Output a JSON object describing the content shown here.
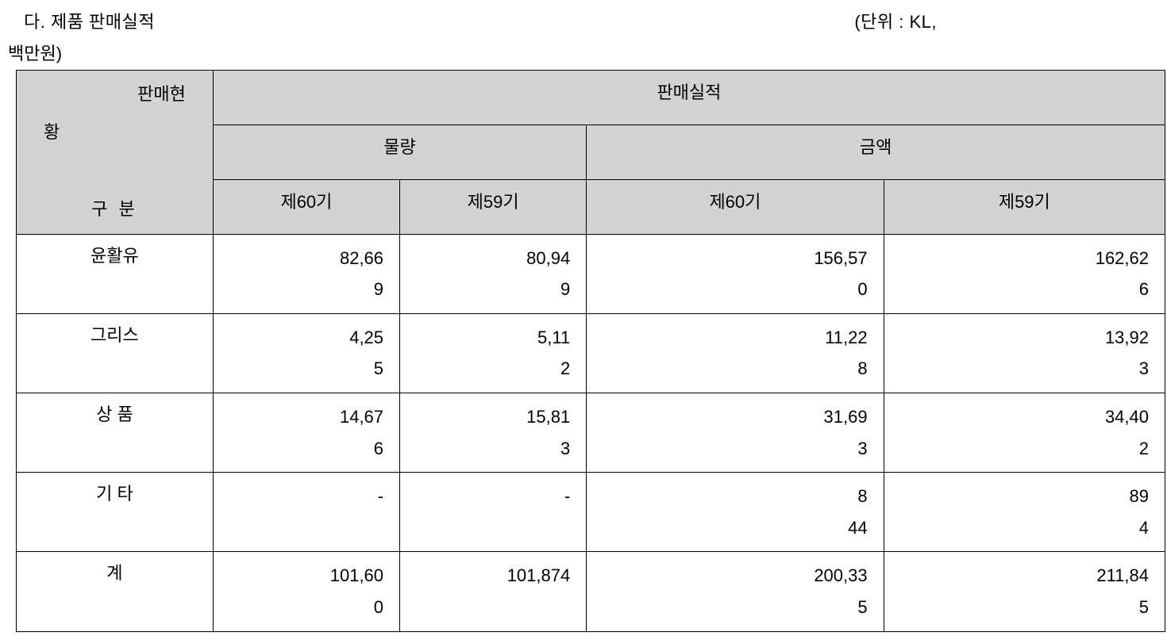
{
  "header": {
    "title": "다. 제품 판매실적",
    "unit_prefix": "(단위 : KL,",
    "unit_suffix": "백만원)"
  },
  "table": {
    "corner": {
      "line1": "판매현",
      "line2": "황",
      "line3": "구 분"
    },
    "top_header": "판매실적",
    "group1": "물량",
    "group2": "금액",
    "period_a": "제60기",
    "period_b": "제59기",
    "rows": [
      {
        "label": "윤활유",
        "spaced": false,
        "vol60": {
          "l1": "82,66",
          "l2": "9"
        },
        "vol59": {
          "l1": "80,94",
          "l2": "9"
        },
        "amt60": {
          "l1": "156,57",
          "l2": "0"
        },
        "amt59": {
          "l1": "162,62",
          "l2": "6"
        }
      },
      {
        "label": "그리스",
        "spaced": false,
        "vol60": {
          "l1": "4,25",
          "l2": "5"
        },
        "vol59": {
          "l1": "5,11",
          "l2": "2"
        },
        "amt60": {
          "l1": "11,22",
          "l2": "8"
        },
        "amt59": {
          "l1": "13,92",
          "l2": "3"
        }
      },
      {
        "label": "상    품",
        "spaced": false,
        "vol60": {
          "l1": "14,67",
          "l2": "6"
        },
        "vol59": {
          "l1": "15,81",
          "l2": "3"
        },
        "amt60": {
          "l1": "31,69",
          "l2": "3"
        },
        "amt59": {
          "l1": "34,40",
          "l2": "2"
        }
      },
      {
        "label": "기    타",
        "spaced": false,
        "vol60": {
          "l1": "",
          "l2": "-"
        },
        "vol59": {
          "l1": "",
          "l2": "-"
        },
        "amt60": {
          "l1": "8",
          "l2": "44"
        },
        "amt59": {
          "l1": "89",
          "l2": "4"
        }
      },
      {
        "label": "계",
        "spaced": false,
        "vol60": {
          "l1": "101,60",
          "l2": "0"
        },
        "vol59": {
          "l1": "101,874",
          "l2": ""
        },
        "amt60": {
          "l1": "200,33",
          "l2": "5"
        },
        "amt59": {
          "l1": "211,84",
          "l2": "5"
        }
      }
    ]
  },
  "style": {
    "header_bg": "#d3d3d3",
    "border_color": "#000000",
    "font_size_pt": 16
  }
}
